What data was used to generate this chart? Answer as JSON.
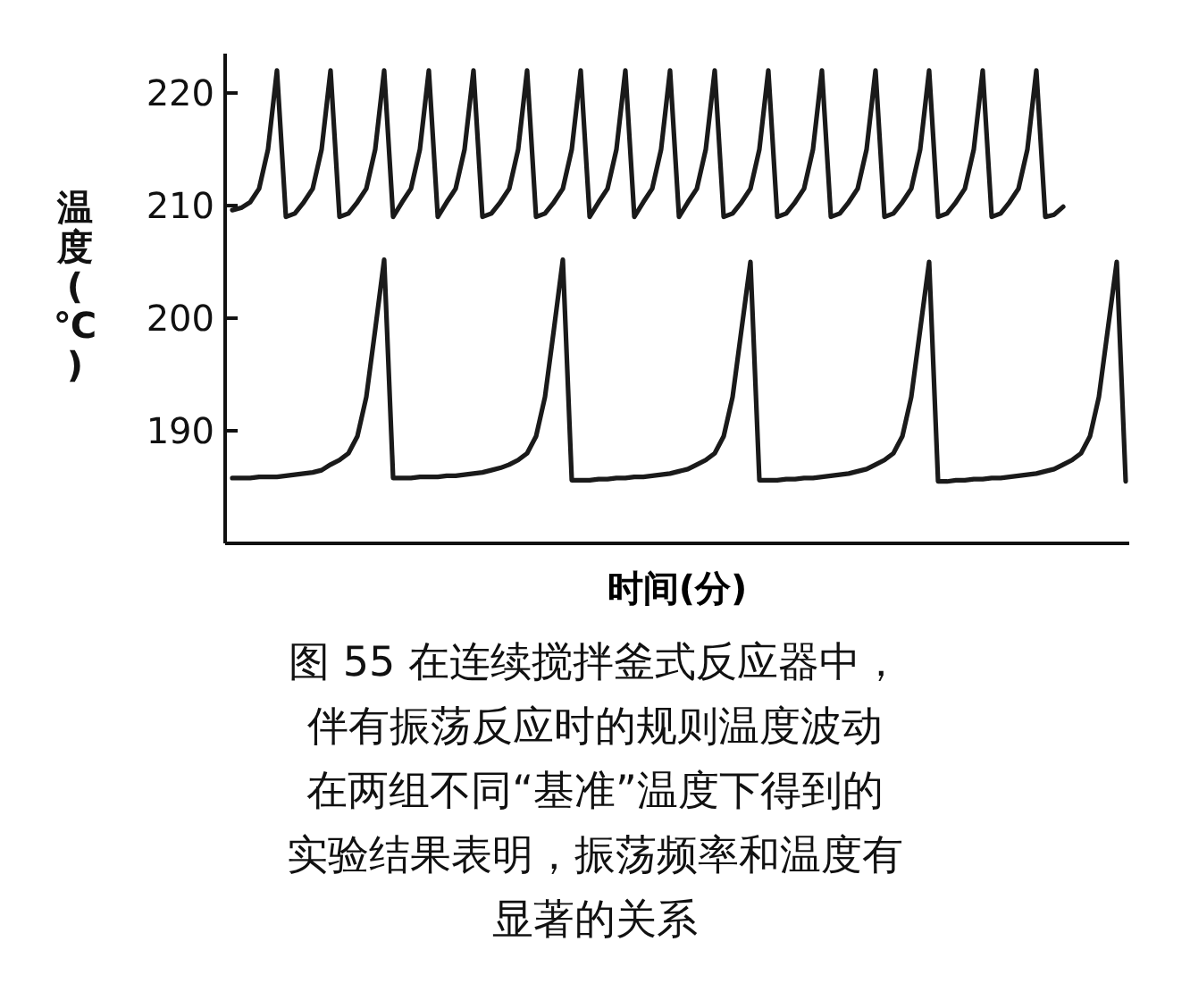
{
  "chart_data": {
    "type": "line",
    "xlabel": "时间(分)",
    "ylabel": "温度(℃)",
    "annotations": [
      "图 55  在连续搅拌釜式反应器中，",
      "伴有振荡反应时的规则温度波动",
      "在两组不同“基准”温度下得到的",
      "实验结果表明，振荡频率和温度有",
      "显著的关系"
    ],
    "categories": [
      null,
      null,
      null,
      null,
      null,
      null,
      null,
      null,
      null,
      null,
      null,
      null,
      null,
      null,
      null,
      null,
      null,
      null,
      null,
      null,
      null,
      null,
      null,
      null,
      null,
      null,
      null,
      null,
      null,
      null,
      null,
      null,
      null,
      null,
      null,
      null,
      null,
      null,
      null,
      null,
      null,
      null,
      null,
      null,
      null,
      null,
      null,
      null,
      null,
      null,
      null,
      null,
      null,
      null,
      null,
      null,
      null,
      null,
      null,
      null,
      null,
      null,
      null,
      null,
      null,
      null,
      null,
      null,
      null,
      null,
      null,
      null,
      null,
      null,
      null,
      null,
      null,
      null,
      null,
      null,
      null,
      null,
      null,
      null,
      null,
      null,
      null,
      null,
      null,
      null,
      null,
      null,
      null,
      null,
      null,
      null,
      null,
      null,
      null,
      null,
      null
    ],
    "ylim": [
      180,
      223.5
    ],
    "yticks": [
      190,
      200,
      210,
      220
    ],
    "tick_labels": "y",
    "grid": false,
    "marker": "none",
    "line_style": "solid",
    "series": [
      {
        "color": "#1a1a1a",
        "values": [
          209.6,
          209.8,
          210.3,
          211.5,
          215,
          222,
          209,
          209.3,
          210.3,
          211.5,
          215,
          222,
          209,
          209.3,
          210.3,
          211.5,
          215,
          222,
          209,
          210.3,
          211.5,
          215,
          222,
          209,
          210.3,
          211.5,
          215,
          222,
          209,
          209.3,
          210.3,
          211.5,
          215,
          222,
          209,
          209.3,
          210.3,
          211.5,
          215,
          222,
          209,
          210.3,
          211.5,
          215,
          222,
          209,
          210.3,
          211.5,
          215,
          222,
          209,
          210.3,
          211.5,
          215,
          222,
          209,
          209.3,
          210.3,
          211.5,
          215,
          222,
          209,
          209.3,
          210.3,
          211.5,
          215,
          222,
          209,
          209.3,
          210.3,
          211.5,
          215,
          222,
          209,
          209.3,
          210.3,
          211.5,
          215,
          222,
          209,
          209.3,
          210.3,
          211.5,
          215,
          222,
          209,
          209.3,
          210.3,
          211.5,
          215,
          222,
          209,
          209.2,
          209.9,
          null,
          null,
          null,
          null,
          null,
          null,
          null
        ]
      },
      {
        "color": "#1a1a1a",
        "values": [
          185.8,
          185.8,
          185.8,
          185.9,
          185.9,
          185.9,
          186,
          186.1,
          186.2,
          186.3,
          186.5,
          187,
          187.4,
          188,
          189.5,
          193,
          199,
          205.2,
          185.8,
          185.8,
          185.8,
          185.9,
          185.9,
          185.9,
          186,
          186,
          186.1,
          186.2,
          186.3,
          186.5,
          186.7,
          187,
          187.4,
          188,
          189.5,
          193,
          199,
          205.2,
          185.6,
          185.6,
          185.6,
          185.7,
          185.7,
          185.8,
          185.8,
          185.9,
          185.9,
          186,
          186.1,
          186.2,
          186.4,
          186.6,
          187,
          187.4,
          188,
          189.5,
          193,
          199,
          205,
          185.6,
          185.6,
          185.6,
          185.7,
          185.7,
          185.8,
          185.8,
          185.9,
          186,
          186.1,
          186.2,
          186.4,
          186.6,
          187,
          187.4,
          188,
          189.5,
          193,
          199,
          205,
          185.5,
          185.5,
          185.6,
          185.6,
          185.7,
          185.7,
          185.8,
          185.8,
          185.9,
          186,
          186.1,
          186.2,
          186.4,
          186.6,
          187,
          187.4,
          188,
          189.5,
          193,
          199,
          205,
          185.5
        ]
      }
    ]
  }
}
